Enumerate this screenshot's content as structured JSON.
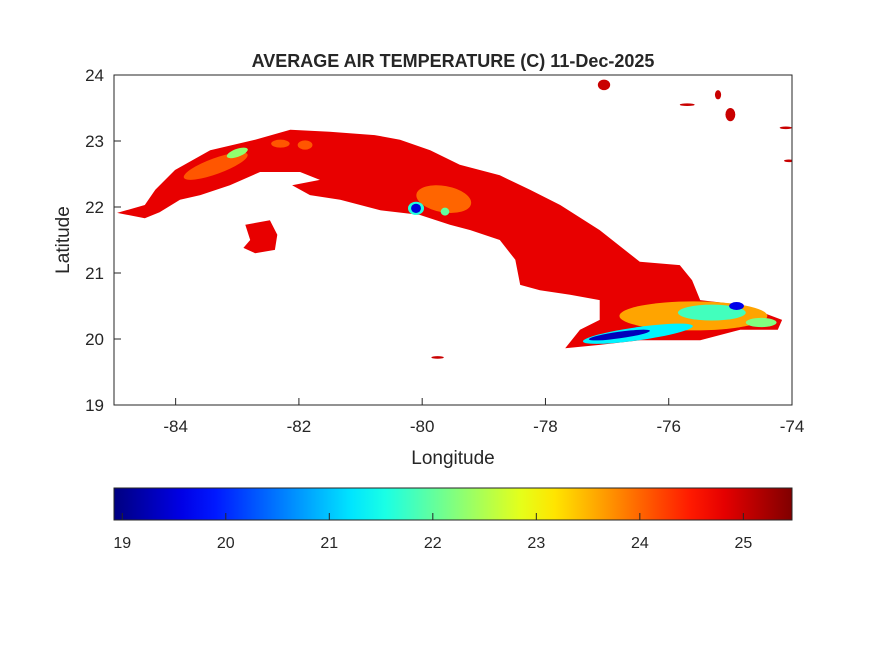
{
  "chart_data": {
    "type": "heatmap",
    "title": "AVERAGE AIR TEMPERATURE (C) 11-Dec-2025",
    "xlabel": "Longitude",
    "ylabel": "Latitude",
    "xlim": [
      -85,
      -74
    ],
    "ylim": [
      19,
      24
    ],
    "xticks": [
      "-84",
      "-82",
      "-80",
      "-78",
      "-76",
      "-74"
    ],
    "yticks": [
      "19",
      "20",
      "21",
      "22",
      "23",
      "24"
    ],
    "grid": false,
    "colormap": "jet",
    "clim": [
      18.92,
      25.47
    ],
    "colorbar": {
      "location": "bottom",
      "ticks": [
        "19",
        "20",
        "21",
        "22",
        "23",
        "24",
        "25"
      ]
    },
    "background_value": 25.0,
    "land_polygons": [
      {
        "name": "Cuba",
        "value": 24.8,
        "coords": [
          [
            -84.95,
            21.91
          ],
          [
            -84.5,
            22.03
          ],
          [
            -84.33,
            22.26
          ],
          [
            -84.01,
            22.56
          ],
          [
            -83.44,
            22.86
          ],
          [
            -82.71,
            23.02
          ],
          [
            -82.14,
            23.17
          ],
          [
            -81.5,
            23.14
          ],
          [
            -80.77,
            23.09
          ],
          [
            -80.36,
            23.02
          ],
          [
            -79.87,
            22.86
          ],
          [
            -79.39,
            22.64
          ],
          [
            -78.74,
            22.48
          ],
          [
            -78.25,
            22.26
          ],
          [
            -77.76,
            22.03
          ],
          [
            -77.12,
            21.65
          ],
          [
            -76.47,
            21.17
          ],
          [
            -75.82,
            21.12
          ],
          [
            -75.62,
            20.89
          ],
          [
            -75.49,
            20.59
          ],
          [
            -74.84,
            20.52
          ],
          [
            -74.36,
            20.36
          ],
          [
            -74.16,
            20.29
          ],
          [
            -74.23,
            20.14
          ],
          [
            -74.84,
            20.14
          ],
          [
            -75.49,
            19.98
          ],
          [
            -76.47,
            19.98
          ],
          [
            -77.12,
            19.91
          ],
          [
            -77.68,
            19.86
          ],
          [
            -77.44,
            20.14
          ],
          [
            -77.12,
            20.29
          ],
          [
            -77.12,
            20.59
          ],
          [
            -77.6,
            20.67
          ],
          [
            -78.09,
            20.74
          ],
          [
            -78.41,
            20.82
          ],
          [
            -78.49,
            21.2
          ],
          [
            -78.74,
            21.5
          ],
          [
            -79.22,
            21.65
          ],
          [
            -79.55,
            21.73
          ],
          [
            -80.04,
            21.88
          ],
          [
            -80.68,
            21.95
          ],
          [
            -81.33,
            22.11
          ],
          [
            -81.82,
            22.18
          ],
          [
            -82.11,
            22.33
          ],
          [
            -81.66,
            22.41
          ],
          [
            -81.98,
            22.53
          ],
          [
            -82.63,
            22.53
          ],
          [
            -83.12,
            22.33
          ],
          [
            -83.6,
            22.18
          ],
          [
            -83.93,
            22.11
          ],
          [
            -84.26,
            21.92
          ],
          [
            -84.5,
            21.83
          ]
        ]
      },
      {
        "name": "Isla de la Juventud",
        "value": 24.8,
        "coords": [
          [
            -82.87,
            21.73
          ],
          [
            -82.47,
            21.8
          ],
          [
            -82.35,
            21.58
          ],
          [
            -82.39,
            21.35
          ],
          [
            -82.71,
            21.3
          ],
          [
            -82.9,
            21.38
          ],
          [
            -82.79,
            21.5
          ]
        ]
      }
    ],
    "temperature_patches": [
      {
        "lon": -83.35,
        "lat": 22.62,
        "rlon": 0.55,
        "rlat": 0.12,
        "rot": -20,
        "value": 24.1
      },
      {
        "lon": -83.0,
        "lat": 22.82,
        "rlon": 0.18,
        "rlat": 0.06,
        "rot": -20,
        "value": 22.3
      },
      {
        "lon": -82.3,
        "lat": 22.96,
        "rlon": 0.15,
        "rlat": 0.06,
        "rot": 0,
        "value": 24.1
      },
      {
        "lon": -81.9,
        "lat": 22.94,
        "rlon": 0.12,
        "rlat": 0.07,
        "rot": 0,
        "value": 24.1
      },
      {
        "lon": -79.65,
        "lat": 22.12,
        "rlon": 0.45,
        "rlat": 0.2,
        "rot": 10,
        "value": 24.0
      },
      {
        "lon": -80.1,
        "lat": 21.98,
        "rlon": 0.13,
        "rlat": 0.1,
        "rot": 0,
        "value": 21.6
      },
      {
        "lon": -80.1,
        "lat": 21.98,
        "rlon": 0.08,
        "rlat": 0.07,
        "rot": 0,
        "value": 19.5
      },
      {
        "lon": -79.63,
        "lat": 21.93,
        "rlon": 0.07,
        "rlat": 0.06,
        "rot": 0,
        "value": 22.0
      },
      {
        "lon": -75.6,
        "lat": 20.35,
        "rlon": 1.2,
        "rlat": 0.22,
        "rot": 0,
        "value": 23.6
      },
      {
        "lon": -76.5,
        "lat": 20.08,
        "rlon": 0.9,
        "rlat": 0.1,
        "rot": -8,
        "value": 21.3
      },
      {
        "lon": -76.8,
        "lat": 20.06,
        "rlon": 0.5,
        "rlat": 0.05,
        "rot": -8,
        "value": 19.3
      },
      {
        "lon": -75.3,
        "lat": 20.4,
        "rlon": 0.55,
        "rlat": 0.12,
        "rot": 0,
        "value": 21.8
      },
      {
        "lon": -74.9,
        "lat": 20.5,
        "rlon": 0.12,
        "rlat": 0.06,
        "rot": 0,
        "value": 19.6
      },
      {
        "lon": -74.5,
        "lat": 20.25,
        "rlon": 0.25,
        "rlat": 0.07,
        "rot": 0,
        "value": 22.2
      }
    ],
    "islets": [
      {
        "lon": -77.05,
        "lat": 23.85,
        "rlon": 0.1,
        "rlat": 0.08
      },
      {
        "lon": -75.7,
        "lat": 23.55,
        "rlon": 0.12,
        "rlat": 0.02
      },
      {
        "lon": -75.0,
        "lat": 23.4,
        "rlon": 0.08,
        "rlat": 0.1
      },
      {
        "lon": -74.1,
        "lat": 23.2,
        "rlon": 0.1,
        "rlat": 0.02
      },
      {
        "lon": -74.05,
        "lat": 22.7,
        "rlon": 0.08,
        "rlat": 0.02
      },
      {
        "lon": -75.2,
        "lat": 23.7,
        "rlon": 0.05,
        "rlat": 0.07
      },
      {
        "lon": -79.75,
        "lat": 19.72,
        "rlon": 0.1,
        "rlat": 0.02
      }
    ]
  }
}
